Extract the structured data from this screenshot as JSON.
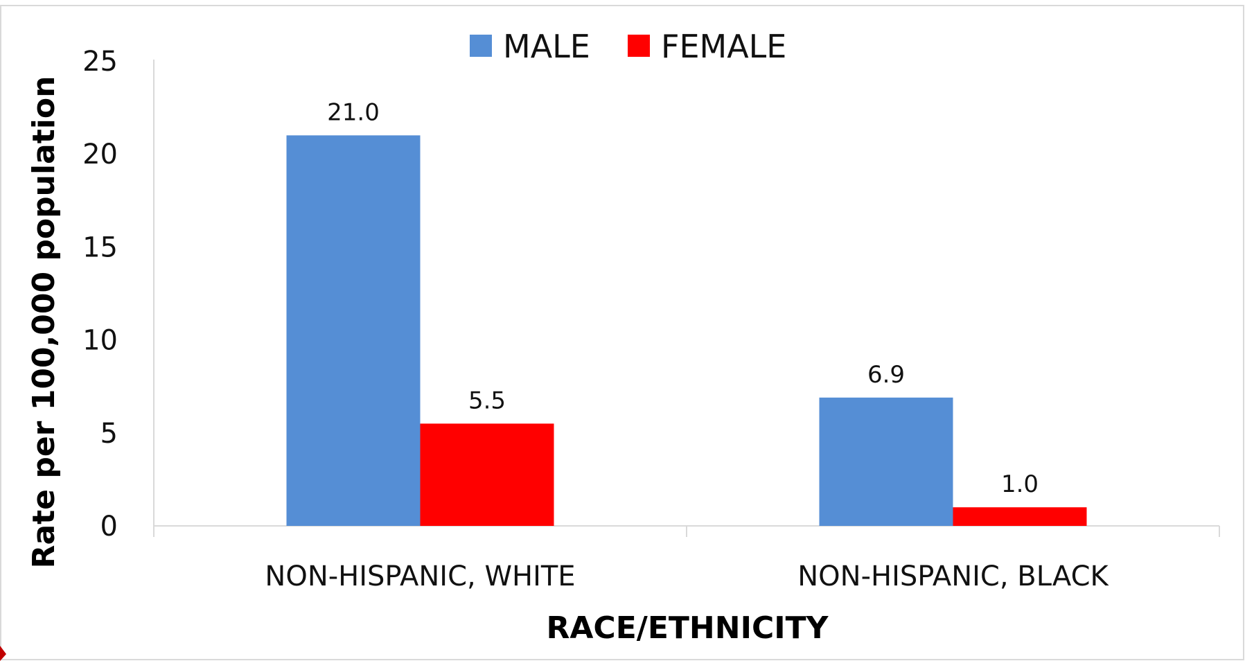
{
  "chart_data": {
    "type": "bar",
    "categories": [
      "NON-HISPANIC, WHITE",
      "NON-HISPANIC, BLACK"
    ],
    "series": [
      {
        "name": "MALE",
        "values": [
          21.0,
          6.9
        ],
        "labels": [
          "21.0",
          "6.9"
        ],
        "color": "#558ed5"
      },
      {
        "name": "FEMALE",
        "values": [
          5.5,
          1.0
        ],
        "labels": [
          "5.5",
          "1.0"
        ],
        "color": "#ff0000"
      }
    ],
    "xlabel": "RACE/ETHNICITY",
    "ylabel": "Rate per 100,000 population",
    "ylim": [
      0,
      25
    ],
    "yticks": [
      0,
      5,
      10,
      15,
      20,
      25
    ],
    "ytick_labels": [
      "0",
      "5",
      "10",
      "15",
      "20",
      "25"
    ],
    "legend_position": "top-center",
    "grid": false,
    "colors": {
      "axis": "#d9d9d9",
      "border": "#d9d9d9",
      "corner_accent": "#c00000"
    }
  }
}
